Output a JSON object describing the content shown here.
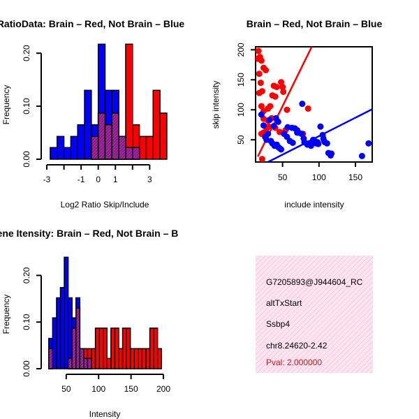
{
  "colors": {
    "red": "#ff0000",
    "blue": "#0000ff",
    "overlap": "#8b1a8b",
    "hatch_bg": "#fce4f0",
    "hatch_line": "#f3b3d2",
    "pval": "#b22222"
  },
  "chart_data": [
    {
      "id": "ratio",
      "type": "bar",
      "title": "RatioData: Brain – Red, Not Brain – Blue",
      "xlabel": "Log2 Ratio Skip/Include",
      "ylabel": "Frequency",
      "xlim": [
        -3,
        3.8
      ],
      "ylim": [
        0,
        0.22
      ],
      "bin_width": 0.4,
      "xticks": [
        -3,
        -2,
        -1,
        0,
        1,
        2,
        3
      ],
      "xtick_labels": [
        "-3",
        "",
        "-1",
        "0",
        "1",
        "",
        "3"
      ],
      "yticks": [
        0,
        0.1,
        0.2
      ],
      "ytick_labels": [
        "0.00",
        "0.10",
        "0.20"
      ],
      "series": [
        {
          "name": "Not Brain",
          "color": "blue",
          "bins": [
            {
              "x": -2.8,
              "y": 0.022
            },
            {
              "x": -2.4,
              "y": 0.043
            },
            {
              "x": -2.0,
              "y": 0.022
            },
            {
              "x": -1.6,
              "y": 0.043
            },
            {
              "x": -1.2,
              "y": 0.065
            },
            {
              "x": -0.8,
              "y": 0.13
            },
            {
              "x": -0.4,
              "y": 0.065
            },
            {
              "x": 0.0,
              "y": 0.217
            },
            {
              "x": 0.4,
              "y": 0.13
            },
            {
              "x": 0.8,
              "y": 0.13
            },
            {
              "x": 1.2,
              "y": 0.043
            },
            {
              "x": 1.6,
              "y": 0.022
            },
            {
              "x": 2.0,
              "y": 0.022
            }
          ]
        },
        {
          "name": "Brain",
          "color": "red",
          "bins": [
            {
              "x": -0.4,
              "y": 0.043
            },
            {
              "x": 0.0,
              "y": 0.087
            },
            {
              "x": 0.4,
              "y": 0.065
            },
            {
              "x": 0.8,
              "y": 0.087
            },
            {
              "x": 1.2,
              "y": 0.043
            },
            {
              "x": 1.6,
              "y": 0.217
            },
            {
              "x": 2.0,
              "y": 0.065
            },
            {
              "x": 2.4,
              "y": 0.043
            },
            {
              "x": 2.8,
              "y": 0.043
            },
            {
              "x": 3.2,
              "y": 0.13
            },
            {
              "x": 3.6,
              "y": 0.087
            }
          ]
        }
      ]
    },
    {
      "id": "scatter",
      "type": "scatter",
      "title": "Brain – Red, Not Brain – Blue",
      "xlabel": "include intensity",
      "ylabel": "skip intensity",
      "xlim": [
        13,
        173
      ],
      "ylim": [
        13,
        205
      ],
      "xticks": [
        50,
        100,
        150
      ],
      "yticks": [
        50,
        100,
        150,
        200
      ],
      "series": [
        {
          "name": "Brain",
          "color": "red",
          "points": [
            [
              17,
              198
            ],
            [
              19,
              188
            ],
            [
              16,
              185
            ],
            [
              21,
              182
            ],
            [
              18,
              160
            ],
            [
              24,
              170
            ],
            [
              27,
              166
            ],
            [
              20,
              145
            ],
            [
              22,
              131
            ],
            [
              18,
              128
            ],
            [
              38,
              140
            ],
            [
              42,
              138
            ],
            [
              36,
              124
            ],
            [
              40,
              122
            ],
            [
              48,
              146
            ],
            [
              50,
              138
            ],
            [
              51,
              130
            ],
            [
              33,
              106
            ],
            [
              30,
              102
            ],
            [
              21,
              106
            ],
            [
              24,
              98
            ],
            [
              56,
              100
            ],
            [
              85,
              102
            ],
            [
              35,
              86
            ],
            [
              30,
              82
            ],
            [
              24,
              85
            ],
            [
              31,
              72
            ],
            [
              28,
              69
            ],
            [
              40,
              70
            ],
            [
              24,
              62
            ],
            [
              21,
              60
            ],
            [
              27,
              55
            ],
            [
              46,
              63
            ],
            [
              78,
              60
            ],
            [
              54,
              66
            ],
            [
              22,
              18
            ]
          ],
          "fit": [
            [
              16,
              22
            ],
            [
              90,
              205
            ]
          ]
        },
        {
          "name": "Not Brain",
          "color": "blue",
          "points": [
            [
              21,
              92
            ],
            [
              32,
              83
            ],
            [
              41,
              86
            ],
            [
              44,
              80
            ],
            [
              24,
              74
            ],
            [
              38,
              73
            ],
            [
              57,
              71
            ],
            [
              63,
              70
            ],
            [
              67,
              69
            ],
            [
              70,
              66
            ],
            [
              72,
              62
            ],
            [
              76,
              60
            ],
            [
              79,
              52
            ],
            [
              80,
              46
            ],
            [
              84,
              42
            ],
            [
              86,
              44
            ],
            [
              89,
              40
            ],
            [
              92,
              50
            ],
            [
              94,
              48
            ],
            [
              96,
              44
            ],
            [
              98,
              46
            ],
            [
              99,
              43
            ],
            [
              102,
              72
            ],
            [
              105,
              58
            ],
            [
              106,
              52
            ],
            [
              107,
              48
            ],
            [
              108,
              46
            ],
            [
              111,
              44
            ],
            [
              30,
              60
            ],
            [
              26,
              55
            ],
            [
              28,
              50
            ],
            [
              34,
              48
            ],
            [
              36,
              44
            ],
            [
              39,
              40
            ],
            [
              42,
              42
            ],
            [
              44,
              38
            ],
            [
              46,
              36
            ],
            [
              48,
              34
            ],
            [
              52,
              60
            ],
            [
              56,
              55
            ],
            [
              60,
              48
            ],
            [
              64,
              45
            ],
            [
              70,
              62
            ],
            [
              113,
              28
            ],
            [
              116,
              24
            ],
            [
              117,
              27
            ],
            [
              159,
              23
            ],
            [
              168,
              44
            ],
            [
              77,
              110
            ]
          ],
          "fit": [
            [
              30,
              13
            ],
            [
              173,
              101
            ]
          ]
        }
      ]
    },
    {
      "id": "intensity",
      "type": "bar",
      "title": "Gene Itensity: Brain – Red, Not Brain – B",
      "xlabel": "Intensity",
      "ylabel": "Frequency",
      "xlim": [
        20,
        200
      ],
      "ylim": [
        0,
        0.25
      ],
      "bin_width": 6,
      "xticks": [
        50,
        100,
        150,
        200
      ],
      "xtick_labels": [
        "50",
        "100",
        "150",
        "200"
      ],
      "yticks": [
        0,
        0.1,
        0.2
      ],
      "ytick_labels": [
        "0.00",
        "0.10",
        "0.20"
      ],
      "series": [
        {
          "name": "Not Brain",
          "color": "blue",
          "bins": [
            {
              "x": 23,
              "y": 0.065
            },
            {
              "x": 29,
              "y": 0.109
            },
            {
              "x": 35,
              "y": 0.152
            },
            {
              "x": 41,
              "y": 0.174
            },
            {
              "x": 47,
              "y": 0.239
            },
            {
              "x": 53,
              "y": 0.152
            },
            {
              "x": 59,
              "y": 0.109
            },
            {
              "x": 65,
              "y": 0.152
            },
            {
              "x": 71,
              "y": 0.043
            },
            {
              "x": 77,
              "y": 0.022
            },
            {
              "x": 83,
              "y": 0.022
            }
          ]
        },
        {
          "name": "Brain",
          "color": "red",
          "bins": [
            {
              "x": 23,
              "y": 0.043
            },
            {
              "x": 53,
              "y": 0.022
            },
            {
              "x": 59,
              "y": 0.087
            },
            {
              "x": 65,
              "y": 0.13
            },
            {
              "x": 71,
              "y": 0.043
            },
            {
              "x": 77,
              "y": 0.043
            },
            {
              "x": 83,
              "y": 0.043
            },
            {
              "x": 89,
              "y": 0.043
            },
            {
              "x": 95,
              "y": 0.087
            },
            {
              "x": 101,
              "y": 0.087
            },
            {
              "x": 107,
              "y": 0.087
            },
            {
              "x": 113,
              "y": 0.022
            },
            {
              "x": 119,
              "y": 0.087
            },
            {
              "x": 125,
              "y": 0.087
            },
            {
              "x": 131,
              "y": 0.043
            },
            {
              "x": 137,
              "y": 0.087
            },
            {
              "x": 143,
              "y": 0.087
            },
            {
              "x": 149,
              "y": 0.043
            },
            {
              "x": 155,
              "y": 0.043
            },
            {
              "x": 161,
              "y": 0.043
            },
            {
              "x": 167,
              "y": 0.043
            },
            {
              "x": 173,
              "y": 0.043
            },
            {
              "x": 179,
              "y": 0.087
            },
            {
              "x": 185,
              "y": 0.087
            },
            {
              "x": 191,
              "y": 0.043
            }
          ]
        }
      ]
    }
  ],
  "info": {
    "id_text": "G7205893@J944604_RC",
    "event_type": "altTxStart",
    "gene": "Ssbp4",
    "location": "chr8.24620-2.42",
    "pval": "Pval: 2.000000"
  }
}
